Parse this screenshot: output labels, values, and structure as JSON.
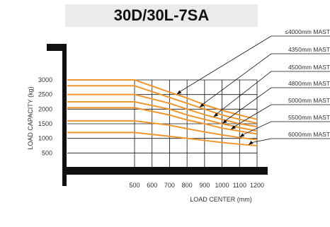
{
  "chart_data": {
    "type": "line",
    "title": "30D/30L-7SA",
    "xlabel": "LOAD CENTER (mm)",
    "ylabel": "LOAD CAPACITY (kg)",
    "xlim": [
      500,
      1200
    ],
    "ylim": [
      0,
      3000
    ],
    "x_ticks": [
      "500",
      "600",
      "700",
      "800",
      "900",
      "1000",
      "1100",
      "1200"
    ],
    "y_ticks": [
      "3000",
      "2500",
      "2000",
      "1500",
      "1000",
      "500"
    ],
    "grid": true,
    "line_color": "#f0962d",
    "series": [
      {
        "name": "≤4000mm MAST",
        "x": [
          500,
          700,
          800,
          900,
          1000,
          1100,
          1200
        ],
        "values": [
          3000,
          2580,
          2380,
          2150,
          1960,
          1800,
          1650
        ]
      },
      {
        "name": "4350mm MAST",
        "x": [
          500,
          700,
          800,
          900,
          1000,
          1100,
          1200
        ],
        "values": [
          2800,
          2400,
          2200,
          2000,
          1800,
          1650,
          1520
        ]
      },
      {
        "name": "4500mm MAST",
        "x": [
          500,
          700,
          800,
          900,
          1000,
          1100,
          1200
        ],
        "values": [
          2500,
          2200,
          2000,
          1810,
          1650,
          1500,
          1400
        ]
      },
      {
        "name": "4800mm MAST",
        "x": [
          500,
          700,
          800,
          900,
          1000,
          1100,
          1200
        ],
        "values": [
          2250,
          2000,
          1800,
          1650,
          1500,
          1370,
          1250
        ]
      },
      {
        "name": "5000mm MAST",
        "x": [
          500,
          700,
          800,
          900,
          1000,
          1100,
          1200
        ],
        "values": [
          2050,
          1800,
          1630,
          1500,
          1350,
          1250,
          1150
        ]
      },
      {
        "name": "5500mm MAST",
        "x": [
          500,
          700,
          800,
          900,
          1000,
          1100,
          1200
        ],
        "values": [
          1600,
          1450,
          1330,
          1220,
          1120,
          1030,
          950
        ]
      },
      {
        "name": "6000mm MAST",
        "x": [
          500,
          700,
          800,
          900,
          1000,
          1100,
          1200
        ],
        "values": [
          1200,
          1070,
          1000,
          930,
          860,
          800,
          750
        ]
      }
    ]
  }
}
